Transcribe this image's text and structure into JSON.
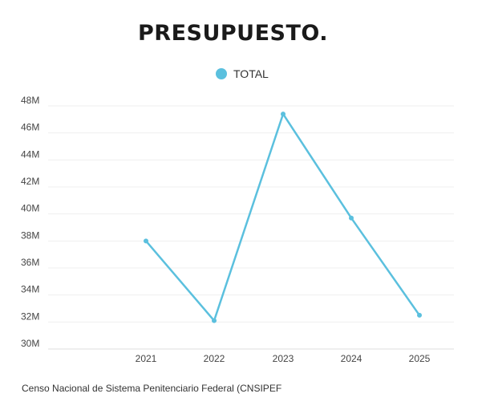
{
  "chart_data": {
    "type": "line",
    "title": "PRESUPUESTO.",
    "categories": [
      "2021",
      "2022",
      "2023",
      "2024",
      "2025"
    ],
    "series": [
      {
        "name": "TOTAL",
        "color": "#5bc0de",
        "values": [
          38.0,
          32.1,
          47.4,
          39.7,
          32.5
        ]
      }
    ],
    "y_ticks": [
      "30M",
      "32M",
      "34M",
      "36M",
      "38M",
      "40M",
      "42M",
      "44M",
      "46M",
      "48M"
    ],
    "ylim": [
      30,
      48
    ],
    "y_unit": "M",
    "grid": true,
    "legend_position": "top-center"
  },
  "source": "Censo Nacional de Sistema Penitenciario Federal (CNSIPEF"
}
